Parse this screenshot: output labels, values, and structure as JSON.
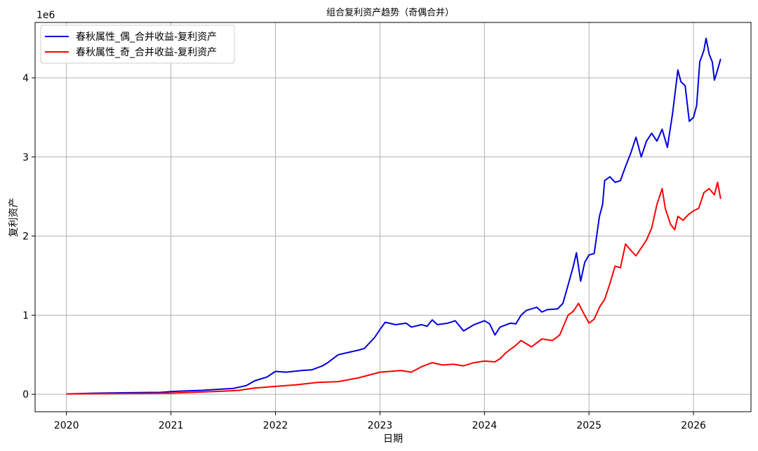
{
  "chart_data": {
    "type": "line",
    "title": "组合复利资产趋势（奇偶合并）",
    "xlabel": "日期",
    "ylabel": "复利资产",
    "y_offset_label": "1e6",
    "y_scale_factor": 1000000,
    "xlim": [
      2019.7,
      2026.55
    ],
    "ylim": [
      -0.22,
      4.7
    ],
    "x_ticks": [
      2020,
      2021,
      2022,
      2023,
      2024,
      2025,
      2026
    ],
    "x_tick_labels": [
      "2020",
      "2021",
      "2022",
      "2023",
      "2024",
      "2025",
      "2026"
    ],
    "y_ticks": [
      0,
      1,
      2,
      3,
      4
    ],
    "y_tick_labels": [
      "0",
      "1",
      "2",
      "3",
      "4"
    ],
    "grid": true,
    "legend_position": "top-left",
    "series": [
      {
        "name": "春秋属性_偶_合并收益-复利资产",
        "color": "#0000dd",
        "points": [
          [
            2020.0,
            0.005
          ],
          [
            2020.3,
            0.015
          ],
          [
            2020.6,
            0.02
          ],
          [
            2020.9,
            0.025
          ],
          [
            2021.0,
            0.035
          ],
          [
            2021.3,
            0.05
          ],
          [
            2021.6,
            0.075
          ],
          [
            2021.72,
            0.11
          ],
          [
            2021.8,
            0.17
          ],
          [
            2021.92,
            0.22
          ],
          [
            2022.0,
            0.29
          ],
          [
            2022.1,
            0.28
          ],
          [
            2022.25,
            0.3
          ],
          [
            2022.35,
            0.31
          ],
          [
            2022.45,
            0.36
          ],
          [
            2022.5,
            0.4
          ],
          [
            2022.6,
            0.5
          ],
          [
            2022.7,
            0.53
          ],
          [
            2022.8,
            0.56
          ],
          [
            2022.85,
            0.58
          ],
          [
            2022.9,
            0.65
          ],
          [
            2022.95,
            0.72
          ],
          [
            2023.0,
            0.82
          ],
          [
            2023.05,
            0.91
          ],
          [
            2023.15,
            0.88
          ],
          [
            2023.25,
            0.9
          ],
          [
            2023.3,
            0.85
          ],
          [
            2023.4,
            0.88
          ],
          [
            2023.45,
            0.86
          ],
          [
            2023.5,
            0.94
          ],
          [
            2023.55,
            0.88
          ],
          [
            2023.65,
            0.9
          ],
          [
            2023.72,
            0.93
          ],
          [
            2023.8,
            0.8
          ],
          [
            2023.9,
            0.88
          ],
          [
            2024.0,
            0.93
          ],
          [
            2024.05,
            0.89
          ],
          [
            2024.1,
            0.75
          ],
          [
            2024.15,
            0.85
          ],
          [
            2024.25,
            0.9
          ],
          [
            2024.3,
            0.89
          ],
          [
            2024.35,
            1.0
          ],
          [
            2024.4,
            1.06
          ],
          [
            2024.5,
            1.1
          ],
          [
            2024.55,
            1.04
          ],
          [
            2024.6,
            1.07
          ],
          [
            2024.7,
            1.08
          ],
          [
            2024.75,
            1.15
          ],
          [
            2024.8,
            1.38
          ],
          [
            2024.85,
            1.62
          ],
          [
            2024.88,
            1.79
          ],
          [
            2024.92,
            1.43
          ],
          [
            2024.96,
            1.67
          ],
          [
            2025.0,
            1.76
          ],
          [
            2025.05,
            1.78
          ],
          [
            2025.1,
            2.25
          ],
          [
            2025.13,
            2.4
          ],
          [
            2025.15,
            2.7
          ],
          [
            2025.2,
            2.75
          ],
          [
            2025.25,
            2.68
          ],
          [
            2025.3,
            2.7
          ],
          [
            2025.35,
            2.88
          ],
          [
            2025.4,
            3.05
          ],
          [
            2025.45,
            3.25
          ],
          [
            2025.5,
            3.0
          ],
          [
            2025.55,
            3.2
          ],
          [
            2025.6,
            3.3
          ],
          [
            2025.65,
            3.2
          ],
          [
            2025.7,
            3.35
          ],
          [
            2025.75,
            3.12
          ],
          [
            2025.8,
            3.55
          ],
          [
            2025.85,
            4.1
          ],
          [
            2025.88,
            3.95
          ],
          [
            2025.92,
            3.9
          ],
          [
            2025.96,
            3.45
          ],
          [
            2026.0,
            3.5
          ],
          [
            2026.03,
            3.65
          ],
          [
            2026.06,
            4.2
          ],
          [
            2026.1,
            4.35
          ],
          [
            2026.12,
            4.5
          ],
          [
            2026.15,
            4.3
          ],
          [
            2026.18,
            4.2
          ],
          [
            2026.2,
            3.97
          ],
          [
            2026.23,
            4.1
          ],
          [
            2026.26,
            4.24
          ]
        ]
      },
      {
        "name": "春秋属性_奇_合并收益-复利资产",
        "color": "#ff0000",
        "points": [
          [
            2020.0,
            0.005
          ],
          [
            2020.5,
            0.01
          ],
          [
            2021.0,
            0.015
          ],
          [
            2021.5,
            0.04
          ],
          [
            2021.65,
            0.05
          ],
          [
            2021.8,
            0.08
          ],
          [
            2022.0,
            0.1
          ],
          [
            2022.2,
            0.12
          ],
          [
            2022.4,
            0.15
          ],
          [
            2022.6,
            0.16
          ],
          [
            2022.8,
            0.21
          ],
          [
            2023.0,
            0.28
          ],
          [
            2023.2,
            0.3
          ],
          [
            2023.3,
            0.28
          ],
          [
            2023.4,
            0.35
          ],
          [
            2023.5,
            0.4
          ],
          [
            2023.6,
            0.37
          ],
          [
            2023.7,
            0.38
          ],
          [
            2023.8,
            0.36
          ],
          [
            2023.9,
            0.4
          ],
          [
            2024.0,
            0.42
          ],
          [
            2024.1,
            0.41
          ],
          [
            2024.15,
            0.45
          ],
          [
            2024.2,
            0.52
          ],
          [
            2024.3,
            0.62
          ],
          [
            2024.35,
            0.68
          ],
          [
            2024.45,
            0.6
          ],
          [
            2024.55,
            0.7
          ],
          [
            2024.65,
            0.68
          ],
          [
            2024.72,
            0.75
          ],
          [
            2024.8,
            1.0
          ],
          [
            2024.85,
            1.05
          ],
          [
            2024.9,
            1.15
          ],
          [
            2024.95,
            1.02
          ],
          [
            2025.0,
            0.9
          ],
          [
            2025.05,
            0.95
          ],
          [
            2025.1,
            1.1
          ],
          [
            2025.15,
            1.2
          ],
          [
            2025.2,
            1.4
          ],
          [
            2025.25,
            1.62
          ],
          [
            2025.3,
            1.6
          ],
          [
            2025.35,
            1.9
          ],
          [
            2025.4,
            1.82
          ],
          [
            2025.45,
            1.75
          ],
          [
            2025.5,
            1.85
          ],
          [
            2025.55,
            1.95
          ],
          [
            2025.6,
            2.1
          ],
          [
            2025.65,
            2.4
          ],
          [
            2025.7,
            2.6
          ],
          [
            2025.73,
            2.35
          ],
          [
            2025.78,
            2.15
          ],
          [
            2025.82,
            2.08
          ],
          [
            2025.85,
            2.25
          ],
          [
            2025.9,
            2.2
          ],
          [
            2025.95,
            2.27
          ],
          [
            2026.0,
            2.32
          ],
          [
            2026.05,
            2.35
          ],
          [
            2026.1,
            2.55
          ],
          [
            2026.15,
            2.6
          ],
          [
            2026.2,
            2.52
          ],
          [
            2026.23,
            2.68
          ],
          [
            2026.26,
            2.47
          ]
        ]
      }
    ]
  }
}
